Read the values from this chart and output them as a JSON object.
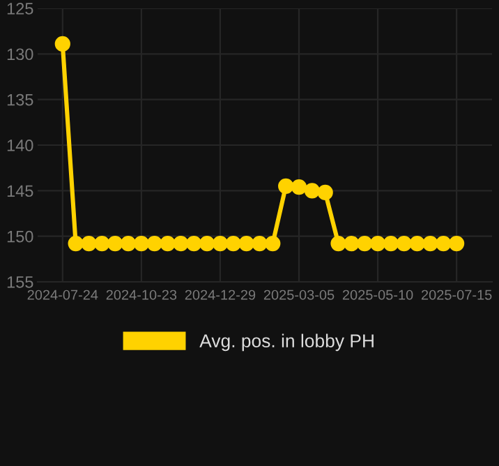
{
  "chart_data": {
    "type": "line",
    "categories": [
      "2024-07-24",
      null,
      null,
      null,
      null,
      null,
      "2024-10-23",
      null,
      null,
      null,
      null,
      null,
      "2024-12-29",
      null,
      null,
      null,
      null,
      null,
      "2025-03-05",
      null,
      null,
      null,
      null,
      null,
      "2025-05-10",
      null,
      null,
      null,
      null,
      null,
      "2025-07-15"
    ],
    "series": [
      {
        "name": "Avg. pos. in lobby PH",
        "color": "#ffd200",
        "values": [
          128.9,
          150.8,
          150.8,
          150.8,
          150.8,
          150.8,
          150.8,
          150.8,
          150.8,
          150.8,
          150.8,
          150.8,
          150.8,
          150.8,
          150.8,
          150.8,
          150.8,
          144.5,
          144.6,
          145.0,
          145.2,
          150.8,
          150.8,
          150.8,
          150.8,
          150.8,
          150.8,
          150.8,
          150.8,
          150.8,
          150.8
        ]
      }
    ],
    "ylim": [
      155,
      125
    ],
    "yticks": [
      125,
      130,
      135,
      140,
      145,
      150,
      155
    ],
    "grid": true,
    "legend": "bottom",
    "marker": "circle",
    "line_style": "solid"
  }
}
